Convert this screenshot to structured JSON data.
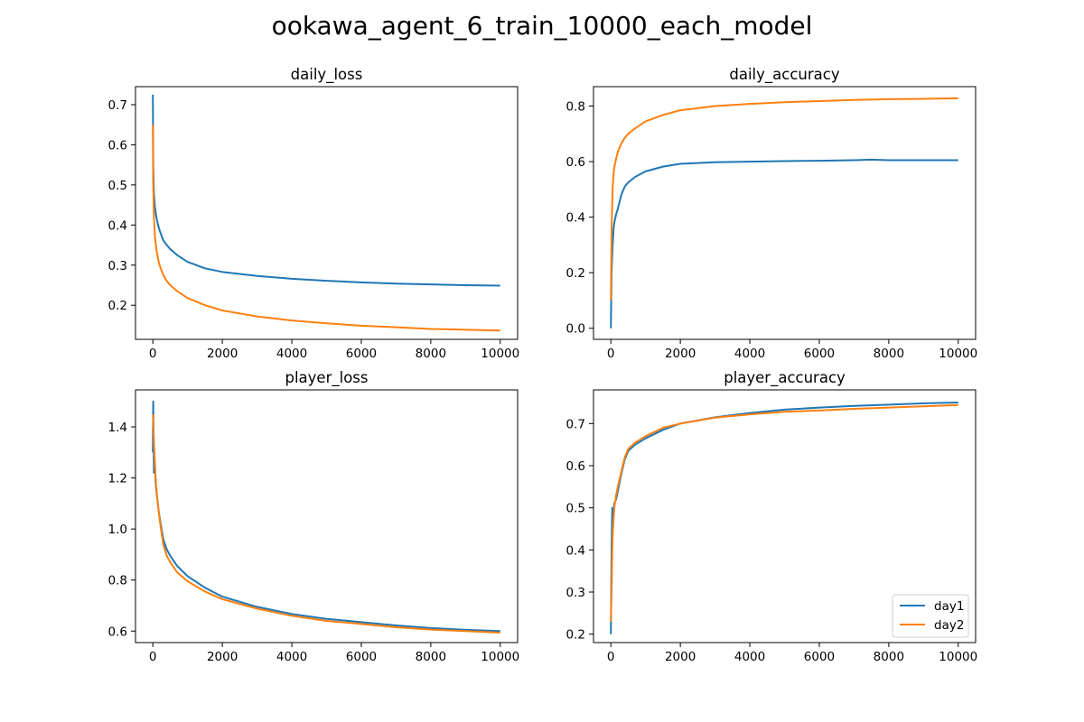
{
  "figure": {
    "title": "ookawa_agent_6_train_10000_each_model",
    "colors": {
      "day1": "#1f77b4",
      "day2": "#ff7f0e"
    }
  },
  "legend": {
    "placement": "lower-right",
    "entries": [
      {
        "name": "day1",
        "color": "#1f77b4"
      },
      {
        "name": "day2",
        "color": "#ff7f0e"
      }
    ]
  },
  "chart_data": [
    {
      "type": "line",
      "title": "daily_loss",
      "xlabel": "",
      "ylabel": "",
      "xlim": [
        -500,
        10500
      ],
      "ylim": [
        0.115,
        0.745
      ],
      "xticks": [
        0,
        2000,
        4000,
        6000,
        8000,
        10000
      ],
      "yticks": [
        0.2,
        0.3,
        0.4,
        0.5,
        0.6,
        0.7
      ],
      "grid": false,
      "series": [
        {
          "name": "day1",
          "color": "#1f77b4",
          "x": [
            0,
            10,
            30,
            60,
            100,
            150,
            200,
            300,
            400,
            500,
            700,
            1000,
            1500,
            2000,
            3000,
            4000,
            5000,
            6000,
            7000,
            8000,
            9000,
            10000
          ],
          "y": [
            0.725,
            0.55,
            0.48,
            0.445,
            0.42,
            0.4,
            0.385,
            0.362,
            0.35,
            0.34,
            0.325,
            0.308,
            0.292,
            0.283,
            0.273,
            0.266,
            0.261,
            0.257,
            0.254,
            0.252,
            0.25,
            0.249
          ]
        },
        {
          "name": "day2",
          "color": "#ff7f0e",
          "x": [
            0,
            10,
            30,
            60,
            100,
            150,
            200,
            300,
            400,
            500,
            700,
            1000,
            1500,
            2000,
            3000,
            4000,
            5000,
            6000,
            7000,
            8000,
            9000,
            10000
          ],
          "y": [
            0.65,
            0.5,
            0.42,
            0.37,
            0.34,
            0.315,
            0.298,
            0.275,
            0.26,
            0.25,
            0.235,
            0.218,
            0.2,
            0.187,
            0.172,
            0.162,
            0.155,
            0.149,
            0.145,
            0.141,
            0.139,
            0.137
          ]
        }
      ]
    },
    {
      "type": "line",
      "title": "daily_accuracy",
      "xlabel": "",
      "ylabel": "",
      "xlim": [
        -500,
        10500
      ],
      "ylim": [
        -0.04,
        0.87
      ],
      "xticks": [
        0,
        2000,
        4000,
        6000,
        8000,
        10000
      ],
      "yticks": [
        0.0,
        0.2,
        0.4,
        0.6,
        0.8
      ],
      "grid": false,
      "series": [
        {
          "name": "day1",
          "color": "#1f77b4",
          "x": [
            0,
            20,
            50,
            80,
            100,
            150,
            200,
            300,
            400,
            500,
            700,
            1000,
            1500,
            2000,
            3000,
            4000,
            5000,
            6000,
            7000,
            7500,
            8000,
            9000,
            10000
          ],
          "y": [
            0.0,
            0.2,
            0.3,
            0.36,
            0.38,
            0.41,
            0.43,
            0.48,
            0.51,
            0.525,
            0.545,
            0.565,
            0.582,
            0.592,
            0.598,
            0.6,
            0.602,
            0.603,
            0.605,
            0.607,
            0.605,
            0.605,
            0.605
          ]
        },
        {
          "name": "day2",
          "color": "#ff7f0e",
          "x": [
            0,
            20,
            50,
            80,
            100,
            150,
            200,
            300,
            400,
            500,
            700,
            1000,
            1500,
            2000,
            3000,
            4000,
            5000,
            6000,
            7000,
            8000,
            9000,
            10000
          ],
          "y": [
            0.1,
            0.35,
            0.5,
            0.56,
            0.58,
            0.61,
            0.635,
            0.665,
            0.685,
            0.7,
            0.72,
            0.745,
            0.768,
            0.785,
            0.8,
            0.808,
            0.814,
            0.818,
            0.822,
            0.825,
            0.826,
            0.828
          ]
        }
      ]
    },
    {
      "type": "line",
      "title": "player_loss",
      "xlabel": "",
      "ylabel": "",
      "xlim": [
        -500,
        10500
      ],
      "ylim": [
        0.555,
        1.545
      ],
      "xticks": [
        0,
        2000,
        4000,
        6000,
        8000,
        10000
      ],
      "yticks": [
        0.6,
        0.8,
        1.0,
        1.2,
        1.4
      ],
      "grid": false,
      "series": [
        {
          "name": "day1",
          "color": "#1f77b4",
          "x": [
            0,
            10,
            30,
            50,
            80,
            100,
            150,
            200,
            300,
            400,
            500,
            700,
            1000,
            1500,
            2000,
            3000,
            4000,
            5000,
            6000,
            7000,
            8000,
            9000,
            10000
          ],
          "y": [
            1.3,
            1.5,
            1.22,
            1.28,
            1.18,
            1.15,
            1.09,
            1.04,
            0.96,
            0.92,
            0.895,
            0.855,
            0.815,
            0.77,
            0.735,
            0.695,
            0.667,
            0.648,
            0.635,
            0.622,
            0.612,
            0.605,
            0.6
          ]
        },
        {
          "name": "day2",
          "color": "#ff7f0e",
          "x": [
            0,
            10,
            30,
            50,
            80,
            100,
            150,
            200,
            300,
            400,
            500,
            700,
            1000,
            1500,
            2000,
            3000,
            4000,
            5000,
            6000,
            7000,
            8000,
            9000,
            10000
          ],
          "y": [
            1.45,
            1.42,
            1.35,
            1.28,
            1.2,
            1.16,
            1.09,
            1.03,
            0.94,
            0.895,
            0.87,
            0.83,
            0.795,
            0.755,
            0.725,
            0.688,
            0.66,
            0.64,
            0.628,
            0.615,
            0.606,
            0.6,
            0.594
          ]
        }
      ]
    },
    {
      "type": "line",
      "title": "player_accuracy",
      "xlabel": "",
      "ylabel": "",
      "xlim": [
        -500,
        10500
      ],
      "ylim": [
        0.18,
        0.78
      ],
      "xticks": [
        0,
        2000,
        4000,
        6000,
        8000,
        10000
      ],
      "yticks": [
        0.2,
        0.3,
        0.4,
        0.5,
        0.6,
        0.7
      ],
      "grid": false,
      "series": [
        {
          "name": "day1",
          "color": "#1f77b4",
          "x": [
            0,
            20,
            40,
            60,
            100,
            150,
            200,
            300,
            400,
            500,
            700,
            1000,
            1500,
            2000,
            3000,
            4000,
            5000,
            6000,
            7000,
            8000,
            9000,
            10000
          ],
          "y": [
            0.2,
            0.4,
            0.5,
            0.47,
            0.51,
            0.52,
            0.54,
            0.58,
            0.615,
            0.635,
            0.65,
            0.665,
            0.685,
            0.7,
            0.715,
            0.725,
            0.733,
            0.738,
            0.742,
            0.745,
            0.748,
            0.75
          ]
        },
        {
          "name": "day2",
          "color": "#ff7f0e",
          "x": [
            0,
            20,
            40,
            60,
            100,
            150,
            200,
            300,
            400,
            500,
            700,
            1000,
            1500,
            2000,
            3000,
            4000,
            5000,
            6000,
            7000,
            8000,
            9000,
            10000
          ],
          "y": [
            0.23,
            0.3,
            0.4,
            0.45,
            0.5,
            0.53,
            0.55,
            0.585,
            0.62,
            0.64,
            0.655,
            0.67,
            0.69,
            0.7,
            0.714,
            0.722,
            0.728,
            0.731,
            0.735,
            0.738,
            0.741,
            0.744
          ]
        }
      ]
    }
  ]
}
